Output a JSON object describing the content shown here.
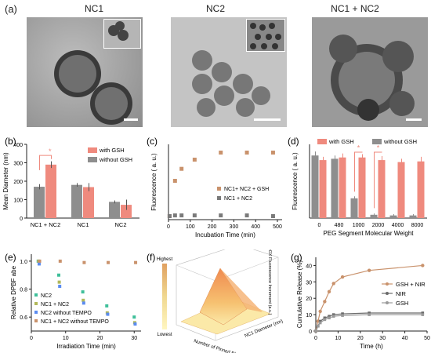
{
  "colors": {
    "salmon": "#ef8a7e",
    "tan": "#c9926c",
    "gray": "#8e8e8e",
    "darkgray": "#7a7a7a",
    "blue": "#5b8cf0",
    "green": "#3fbf9a",
    "olive": "#b2b85a"
  },
  "panel_a": {
    "label": "(a)",
    "titles": [
      "NC1",
      "NC2",
      "NC1 + NC2"
    ]
  },
  "chart_data": [
    {
      "panel": "(b)",
      "type": "bar",
      "ylabel": "Mean Diameter (nm)",
      "categories": [
        "NC1 + NC2",
        "NC1",
        "NC2"
      ],
      "ylim": [
        0,
        400
      ],
      "yticks": [
        0,
        100,
        200,
        300,
        400
      ],
      "series": [
        {
          "name": "without GSH",
          "values": [
            170,
            180,
            88
          ],
          "errors": [
            14,
            10,
            8
          ]
        },
        {
          "name": "with GSH",
          "values": [
            290,
            168,
            72
          ],
          "errors": [
            18,
            22,
            28
          ]
        }
      ],
      "annotation": "*",
      "legend": "top-right"
    },
    {
      "panel": "(c)",
      "type": "scatter",
      "xlabel": "Incubation Time (min)",
      "ylabel": "Fluorescence  ( a. u.)",
      "xlim": [
        0,
        500
      ],
      "xticks": [
        0,
        100,
        200,
        300,
        400,
        500
      ],
      "series": [
        {
          "name": "NC1+ NC2 + GSH",
          "x": [
            5,
            30,
            60,
            120,
            240,
            360,
            480
          ],
          "y": [
            0.05,
            0.55,
            0.72,
            0.85,
            0.95,
            0.95,
            0.95
          ]
        },
        {
          "name": "NC1 + NC2",
          "x": [
            5,
            30,
            60,
            120,
            240,
            360,
            480
          ],
          "y": [
            0.05,
            0.06,
            0.06,
            0.06,
            0.06,
            0.06,
            0.05
          ]
        }
      ],
      "legend": "bottom-right"
    },
    {
      "panel": "(d)",
      "type": "bar",
      "xlabel": "PEG Segment Molecular Weight",
      "ylabel": "Fluorescence  ( a. u.)",
      "categories": [
        "0",
        "480",
        "1000",
        "2000",
        "4000",
        "8000"
      ],
      "series": [
        {
          "name": "without GSH",
          "values": [
            0.95,
            0.9,
            0.3,
            0.05,
            0.04,
            0.04
          ],
          "errors": [
            0.06,
            0.05,
            0.03,
            0.02,
            0.02,
            0.02
          ]
        },
        {
          "name": "with GSH",
          "values": [
            0.88,
            0.92,
            0.92,
            0.88,
            0.85,
            0.86
          ],
          "errors": [
            0.05,
            0.06,
            0.05,
            0.06,
            0.05,
            0.07
          ]
        }
      ],
      "annotation": "*",
      "legend": "top"
    },
    {
      "panel": "(e)",
      "type": "scatter",
      "xlabel": "Irradiation Time (min)",
      "ylabel": "Relative DPBF abe",
      "xlim": [
        0,
        32
      ],
      "xticks": [
        0,
        10,
        20,
        30
      ],
      "ylim": [
        0.5,
        1.05
      ],
      "yticks": [
        0.6,
        0.8,
        1.0
      ],
      "series": [
        {
          "name": "NC2",
          "x": [
            2,
            8,
            15,
            22,
            30
          ],
          "y": [
            1.0,
            0.9,
            0.78,
            0.68,
            0.6
          ]
        },
        {
          "name": "NC1 + NC2",
          "x": [
            2,
            8,
            15,
            22,
            30
          ],
          "y": [
            1.0,
            0.85,
            0.72,
            0.63,
            0.56
          ]
        },
        {
          "name": "NC2 without TEMPO",
          "x": [
            2,
            8,
            15,
            22,
            30
          ],
          "y": [
            0.98,
            0.82,
            0.7,
            0.62,
            0.55
          ]
        },
        {
          "name": "NC1 + NC2 without TEMPO",
          "x": [
            2,
            8,
            15,
            22,
            30
          ],
          "y": [
            1.0,
            1.0,
            0.99,
            0.99,
            0.99
          ]
        }
      ],
      "legend": "bottom-left"
    },
    {
      "panel": "(f)",
      "type": "heatmap",
      "colorbar": {
        "top": "Highest",
        "bottom": "Lowest"
      },
      "zlabel": "DOX Fluorescence Increment (a.u.)",
      "xlabel": "Number of Pinned Blasters",
      "ylabel": "NC1 Diameter (nm)"
    },
    {
      "panel": "(g)",
      "type": "line",
      "xlabel": "Time (h)",
      "ylabel": "Cumulative Release (%)",
      "xlim": [
        0,
        50
      ],
      "xticks": [
        0,
        10,
        20,
        30,
        40,
        50
      ],
      "ylim": [
        0,
        45
      ],
      "yticks": [
        0,
        10,
        20,
        30,
        40
      ],
      "series": [
        {
          "name": "GSH + NIR",
          "x": [
            0,
            1,
            2,
            4,
            6,
            8,
            12,
            24,
            48
          ],
          "y": [
            0,
            6,
            12,
            18,
            24,
            29,
            33,
            37,
            40
          ]
        },
        {
          "name": "NIR",
          "x": [
            0,
            1,
            2,
            4,
            6,
            8,
            12,
            24,
            48
          ],
          "y": [
            0,
            3,
            6,
            8,
            9,
            10,
            10.5,
            11,
            11
          ]
        },
        {
          "name": "GSH",
          "x": [
            0,
            1,
            2,
            4,
            6,
            8,
            12,
            24,
            48
          ],
          "y": [
            0,
            3,
            5,
            7,
            8,
            9,
            9.5,
            10,
            10
          ]
        }
      ],
      "legend": "right"
    }
  ]
}
